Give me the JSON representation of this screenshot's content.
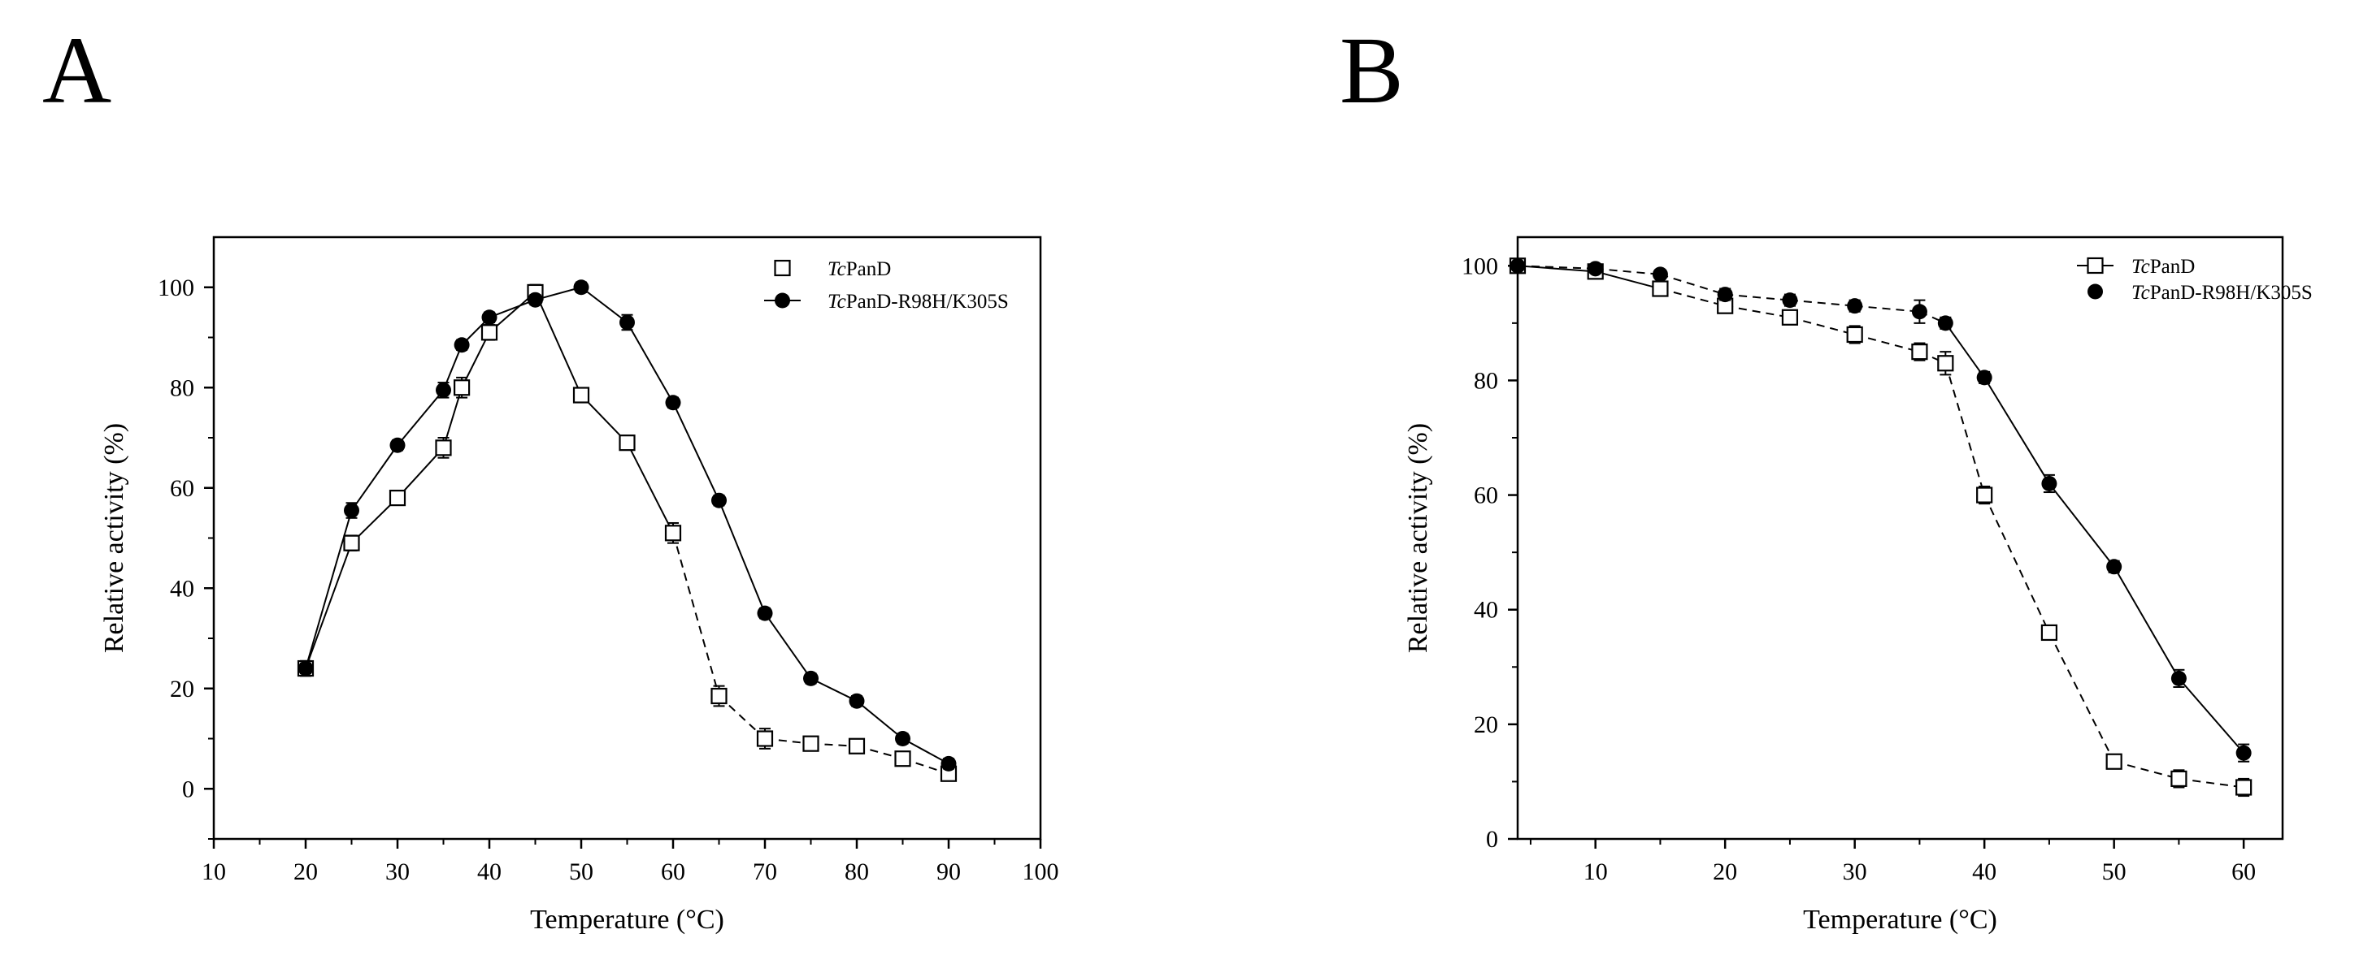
{
  "panels": {
    "a": {
      "letter": "A"
    },
    "b": {
      "letter": "B"
    }
  },
  "chart_data": [
    {
      "id": "A",
      "type": "line",
      "xlabel": "Temperature (°C)",
      "ylabel": "Relative activity (%)",
      "xlim": [
        10,
        100
      ],
      "ylim": [
        -10,
        110
      ],
      "xticks": [
        10,
        20,
        30,
        40,
        50,
        60,
        70,
        80,
        90,
        100
      ],
      "yticks": [
        0,
        20,
        40,
        60,
        80,
        100
      ],
      "legend_position": "top-right",
      "series": [
        {
          "name_italic": "Tc",
          "name_rest": "PanD",
          "marker": "open-square",
          "line_style": "solid-then-dashed",
          "x": [
            20,
            25,
            30,
            35,
            37,
            40,
            45,
            50,
            55,
            60,
            65,
            70,
            75,
            80,
            85,
            90
          ],
          "values": [
            24,
            49,
            58,
            68,
            80,
            91,
            99,
            78.5,
            69,
            51,
            18.5,
            10,
            9,
            8.5,
            6,
            3
          ],
          "error": [
            1.5,
            1.5,
            1,
            2,
            2,
            1.5,
            1.5,
            1,
            1,
            2,
            2,
            2,
            1,
            1,
            1,
            1
          ]
        },
        {
          "name_italic": "Tc",
          "name_rest": "PanD-R98H/K305S",
          "marker": "filled-circle",
          "line_style": "solid",
          "x": [
            20,
            25,
            30,
            35,
            37,
            40,
            45,
            50,
            55,
            60,
            65,
            70,
            75,
            80,
            85,
            90
          ],
          "values": [
            24,
            55.5,
            68.5,
            79.5,
            88.5,
            94,
            97.5,
            100,
            93,
            77,
            57.5,
            35,
            22,
            17.5,
            10,
            5
          ],
          "error": [
            1,
            1.5,
            1,
            1.5,
            1,
            1,
            1,
            1,
            1.5,
            1,
            1,
            1,
            1,
            1,
            1,
            1
          ]
        }
      ]
    },
    {
      "id": "B",
      "type": "line",
      "xlabel": "Temperature (°C)",
      "ylabel": "Relative activity (%)",
      "xlim": [
        4,
        63
      ],
      "ylim": [
        0,
        105
      ],
      "xticks": [
        10,
        20,
        30,
        40,
        50,
        60
      ],
      "yticks": [
        0,
        20,
        40,
        60,
        80,
        100
      ],
      "legend_position": "top-right",
      "series": [
        {
          "name_italic": "Tc",
          "name_rest": "PanD",
          "marker": "open-square",
          "line_style": "solid-then-dashed",
          "x": [
            4,
            10,
            15,
            20,
            25,
            30,
            35,
            37,
            40,
            45,
            50,
            55,
            60
          ],
          "values": [
            100,
            99,
            96,
            93,
            91,
            88,
            85,
            83,
            60,
            36,
            13.5,
            10.5,
            9
          ],
          "error": [
            0.5,
            1,
            1,
            1,
            1,
            1.5,
            1.5,
            2,
            1.5,
            1,
            1,
            1.5,
            1.5
          ]
        },
        {
          "name_italic": "Tc",
          "name_rest": "PanD-R98H/K305S",
          "marker": "filled-circle",
          "line_style": "dashed-then-solid",
          "x": [
            4,
            10,
            15,
            20,
            25,
            30,
            35,
            37,
            40,
            45,
            50,
            55,
            60
          ],
          "values": [
            100,
            99.5,
            98.5,
            95,
            94,
            93,
            92,
            90,
            80.5,
            62,
            47.5,
            28,
            15
          ],
          "error": [
            0.5,
            0.5,
            0.5,
            1,
            1,
            1,
            2,
            1,
            1,
            1.5,
            1,
            1.5,
            1.5
          ]
        }
      ]
    }
  ]
}
